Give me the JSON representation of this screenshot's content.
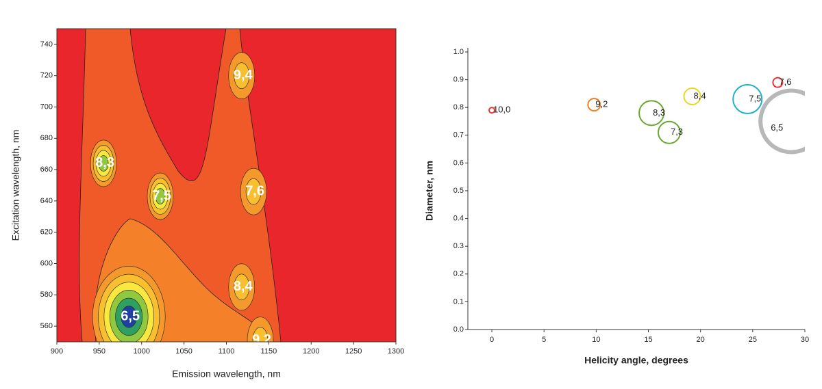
{
  "chart_data": [
    {
      "type": "contour",
      "xlabel": "Emission wavelength, nm",
      "ylabel": "Excitation wavelength, nm",
      "xlim": [
        900,
        1300
      ],
      "xticks": [
        900,
        950,
        1000,
        1050,
        1100,
        1150,
        1200,
        1250,
        1300
      ],
      "ylim": [
        550,
        750
      ],
      "yticks": [
        560,
        580,
        600,
        620,
        640,
        660,
        680,
        700,
        720,
        740
      ],
      "labels": [
        "6,5",
        "8,3",
        "7,5",
        "7,6",
        "9,4",
        "8,4",
        "9,2"
      ],
      "x": [
        985,
        955,
        1022,
        1132,
        1118,
        1118,
        1140
      ],
      "y": [
        566,
        664,
        643,
        646,
        720,
        585,
        551
      ],
      "background": "#e8262c"
    },
    {
      "type": "bubble",
      "xlabel": "Helicity angle, degrees",
      "ylabel": "Diameter, nm",
      "xlim": [
        -2.3,
        30
      ],
      "xticks": [
        0,
        5,
        10,
        15,
        20,
        25,
        30
      ],
      "ylim": [
        0,
        1
      ],
      "yticks": [
        {
          "value": 0,
          "label": "0.0"
        },
        0.1,
        0.2,
        0.3,
        0.4,
        0.5,
        0.6,
        0.7,
        0.8,
        0.9,
        {
          "value": 1,
          "label": "1.0"
        }
      ],
      "labels": [
        "10,0",
        "9,2",
        "8,3",
        "7,3",
        "8,4",
        "7,5",
        "7,6",
        "6,5"
      ],
      "x": [
        0,
        9.8,
        15.3,
        17.0,
        19.2,
        24.5,
        27.4,
        28.7
      ],
      "y": [
        0.79,
        0.81,
        0.78,
        0.71,
        0.84,
        0.83,
        0.89,
        0.75
      ],
      "sizes": [
        4,
        9,
        18,
        16,
        12,
        21,
        7,
        45
      ],
      "colors": [
        "#e33",
        "#f08020",
        "#6aa830",
        "#6aa830",
        "#e8d820",
        "#20b0c8",
        "#e33",
        "#b8b8b8"
      ]
    }
  ]
}
